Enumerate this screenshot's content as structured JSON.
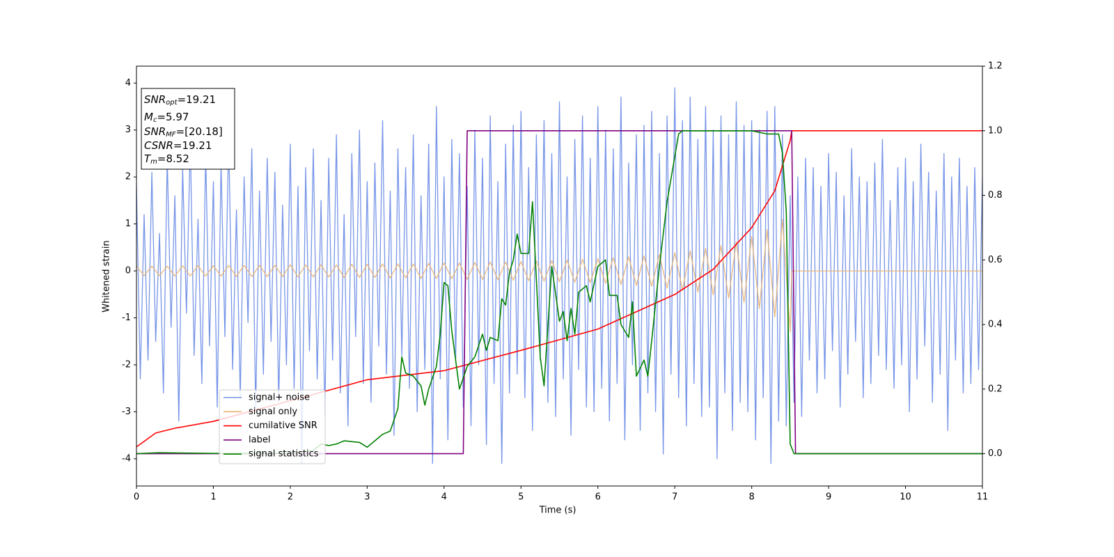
{
  "chart_data": {
    "type": "line",
    "xlabel": "Time (s)",
    "ylabel": "Whitened strain",
    "xlim": [
      0,
      11
    ],
    "ylim": [
      -4.58,
      4.36
    ],
    "y2lim": [
      -0.1,
      1.2
    ],
    "xticks": [
      0,
      1,
      2,
      3,
      4,
      5,
      6,
      7,
      8,
      9,
      10,
      11
    ],
    "yticks": [
      -4,
      -3,
      -2,
      -1,
      0,
      1,
      2,
      3,
      4
    ],
    "y2ticks": [
      {
        "value": 0,
        "label": "0.0"
      },
      {
        "value": 0.2,
        "label": "0.2"
      },
      {
        "value": 0.4,
        "label": "0.4"
      },
      {
        "value": 0.6,
        "label": "0.6"
      },
      {
        "value": 0.8,
        "label": "0.8"
      },
      {
        "value": 1.0,
        "label": "1.0"
      },
      {
        "value": 1.2,
        "label": "1.2"
      }
    ],
    "legend": "lower left",
    "annotations": [
      {
        "base": "SNR",
        "sub": "opt",
        "rest": "=19.21"
      },
      {
        "base": "M",
        "sub": "c",
        "rest": "=5.97"
      },
      {
        "base": "SNR",
        "sub": "MF",
        "rest": "=[20.18]"
      },
      {
        "base": "CSNR",
        "rest": "=19.21"
      },
      {
        "base": "T",
        "sub": "m",
        "rest": "=8.52"
      }
    ],
    "series": [
      {
        "name": "signal+ noise",
        "color": "#7795e8",
        "x": [
          0,
          0.05,
          0.1,
          0.15,
          0.2,
          0.25,
          0.3,
          0.35,
          0.4,
          0.45,
          0.5,
          0.55,
          0.6,
          0.65,
          0.7,
          0.75,
          0.8,
          0.85,
          0.9,
          0.95,
          1,
          1.05,
          1.1,
          1.15,
          1.2,
          1.25,
          1.3,
          1.35,
          1.4,
          1.45,
          1.5,
          1.55,
          1.6,
          1.65,
          1.7,
          1.75,
          1.8,
          1.85,
          1.9,
          1.95,
          2,
          2.05,
          2.1,
          2.15,
          2.2,
          2.25,
          2.3,
          2.35,
          2.4,
          2.45,
          2.5,
          2.55,
          2.6,
          2.65,
          2.7,
          2.75,
          2.8,
          2.85,
          2.9,
          2.95,
          3,
          3.05,
          3.1,
          3.15,
          3.2,
          3.25,
          3.3,
          3.35,
          3.4,
          3.45,
          3.5,
          3.55,
          3.6,
          3.65,
          3.7,
          3.75,
          3.8,
          3.85,
          3.9,
          3.95,
          4,
          4.05,
          4.1,
          4.15,
          4.2,
          4.25,
          4.3,
          4.35,
          4.4,
          4.45,
          4.5,
          4.55,
          4.6,
          4.65,
          4.7,
          4.75,
          4.8,
          4.85,
          4.9,
          4.95,
          5,
          5.05,
          5.1,
          5.15,
          5.2,
          5.25,
          5.3,
          5.35,
          5.4,
          5.45,
          5.5,
          5.55,
          5.6,
          5.65,
          5.7,
          5.75,
          5.8,
          5.85,
          5.9,
          5.95,
          6,
          6.05,
          6.1,
          6.15,
          6.2,
          6.25,
          6.3,
          6.35,
          6.4,
          6.45,
          6.5,
          6.55,
          6.6,
          6.65,
          6.7,
          6.75,
          6.8,
          6.85,
          6.9,
          6.95,
          7,
          7.05,
          7.1,
          7.15,
          7.2,
          7.25,
          7.3,
          7.35,
          7.4,
          7.45,
          7.5,
          7.55,
          7.6,
          7.65,
          7.7,
          7.75,
          7.8,
          7.85,
          7.9,
          7.95,
          8,
          8.05,
          8.1,
          8.15,
          8.2,
          8.25,
          8.3,
          8.35,
          8.4,
          8.45,
          8.5,
          8.55,
          8.6,
          8.65,
          8.7,
          8.75,
          8.8,
          8.85,
          8.9,
          8.95,
          9,
          9.05,
          9.1,
          9.15,
          9.2,
          9.25,
          9.3,
          9.35,
          9.4,
          9.45,
          9.5,
          9.55,
          9.6,
          9.65,
          9.7,
          9.75,
          9.8,
          9.85,
          9.9,
          9.95,
          10,
          10.05,
          10.1,
          10.15,
          10.2,
          10.25,
          10.3,
          10.35,
          10.4,
          10.45,
          10.5,
          10.55,
          10.6,
          10.65,
          10.7,
          10.75,
          10.8,
          10.85,
          10.9,
          10.95,
          11
        ],
        "values": [
          1.8,
          -2.3,
          1.2,
          -1.9,
          2.1,
          -1.5,
          0.8,
          -2.6,
          2.4,
          -1.2,
          1.6,
          -3.2,
          2.2,
          -0.9,
          2.8,
          -1.8,
          1.1,
          -2.4,
          2.5,
          -1.6,
          1.9,
          -2.9,
          2.3,
          -1.4,
          2.9,
          -2.1,
          1.3,
          -2.7,
          2.0,
          -1.1,
          2.6,
          -3.0,
          1.7,
          -2.2,
          2.4,
          -1.5,
          2.1,
          -2.8,
          1.4,
          -2.0,
          2.7,
          -2.5,
          1.8,
          -4.1,
          2.2,
          -1.7,
          2.6,
          -2.3,
          1.5,
          -3.1,
          2.4,
          -1.9,
          2.9,
          -2.6,
          1.2,
          -3.3,
          2.5,
          -1.4,
          3.0,
          -2.4,
          1.9,
          -2.8,
          2.3,
          -1.6,
          3.2,
          -2.2,
          1.7,
          -3.5,
          2.6,
          -1.8,
          2.2,
          -2.5,
          2.9,
          -3.0,
          1.6,
          -2.1,
          2.7,
          -4.1,
          3.5,
          -2.3,
          2.0,
          -3.6,
          2.8,
          -1.9,
          2.5,
          -2.9,
          1.8,
          -3.3,
          3.0,
          -2.0,
          2.4,
          -3.7,
          3.3,
          -2.4,
          1.9,
          -4.1,
          2.7,
          -2.6,
          3.1,
          -2.2,
          3.4,
          -2.7,
          2.2,
          -3.4,
          2.9,
          -1.9,
          3.2,
          -2.8,
          2.5,
          -3.1,
          3.6,
          -2.3,
          2.0,
          -3.5,
          2.8,
          -2.1,
          3.3,
          -2.9,
          2.4,
          -3.0,
          3.5,
          -2.5,
          3.0,
          -3.2,
          2.6,
          -2.4,
          3.7,
          -3.6,
          2.3,
          -2.0,
          2.9,
          -3.4,
          3.1,
          -2.6,
          3.4,
          -3.0,
          2.5,
          -3.9,
          3.3,
          -2.2,
          3.9,
          -2.7,
          3.2,
          -3.3,
          3.7,
          -2.4,
          2.8,
          -3.1,
          3.5,
          -2.9,
          3.0,
          -4.0,
          3.3,
          -2.6,
          2.9,
          -3.4,
          3.6,
          -2.8,
          3.1,
          -3.0,
          3.2,
          -3.6,
          3.0,
          -2.7,
          3.4,
          -4.1,
          3.5,
          -3.2,
          2.9,
          -3.3,
          1.6,
          -2.8,
          2.0,
          -3.1,
          2.4,
          -1.9,
          2.2,
          -2.6,
          1.8,
          -2.3,
          2.5,
          -1.7,
          2.1,
          -2.9,
          1.6,
          -2.2,
          2.6,
          -1.5,
          2.0,
          -2.7,
          1.9,
          -2.4,
          2.3,
          -1.8,
          2.8,
          -2.1,
          1.5,
          -2.5,
          2.2,
          -2.0,
          2.4,
          -3.0,
          1.9,
          -2.3,
          2.7,
          -1.6,
          2.1,
          -2.8,
          1.7,
          -2.2,
          2.5,
          -3.4,
          2.0,
          -1.9,
          2.4,
          -2.6,
          1.8,
          -2.4,
          2.2,
          -2.1,
          2.0
        ]
      },
      {
        "name": "signal only",
        "color": "#e8b070",
        "x": [
          0,
          0.1,
          0.2,
          0.3,
          0.4,
          0.5,
          0.6,
          0.7,
          0.8,
          0.9,
          1,
          1.1,
          1.2,
          1.3,
          1.4,
          1.5,
          1.6,
          1.7,
          1.8,
          1.9,
          2,
          2.1,
          2.2,
          2.3,
          2.4,
          2.5,
          2.6,
          2.7,
          2.8,
          2.9,
          3,
          3.1,
          3.2,
          3.3,
          3.4,
          3.5,
          3.6,
          3.7,
          3.8,
          3.9,
          4,
          4.1,
          4.2,
          4.3,
          4.4,
          4.5,
          4.6,
          4.7,
          4.8,
          4.9,
          5,
          5.1,
          5.2,
          5.3,
          5.4,
          5.5,
          5.6,
          5.7,
          5.8,
          5.9,
          6,
          6.1,
          6.2,
          6.3,
          6.4,
          6.5,
          6.6,
          6.7,
          6.8,
          6.9,
          7,
          7.1,
          7.2,
          7.3,
          7.4,
          7.5,
          7.6,
          7.7,
          7.8,
          7.9,
          8,
          8.1,
          8.2,
          8.3,
          8.4,
          8.5,
          8.52,
          11
        ],
        "values": [
          0.1,
          -0.1,
          0.1,
          -0.1,
          0.1,
          -0.11,
          0.11,
          -0.11,
          0.11,
          -0.11,
          0.11,
          -0.11,
          0.12,
          -0.12,
          0.12,
          -0.12,
          0.12,
          -0.12,
          0.12,
          -0.12,
          0.13,
          -0.13,
          0.13,
          -0.13,
          0.13,
          -0.13,
          0.13,
          -0.14,
          0.14,
          -0.14,
          0.14,
          -0.14,
          0.15,
          -0.15,
          0.15,
          -0.15,
          0.15,
          -0.16,
          0.16,
          -0.16,
          0.17,
          -0.17,
          0.17,
          -0.18,
          0.18,
          -0.18,
          0.19,
          -0.19,
          0.19,
          -0.2,
          0.2,
          -0.21,
          0.21,
          -0.22,
          0.22,
          -0.23,
          0.23,
          -0.24,
          0.25,
          -0.25,
          0.26,
          -0.27,
          0.28,
          -0.29,
          0.3,
          -0.31,
          0.32,
          -0.33,
          0.35,
          -0.37,
          0.39,
          -0.41,
          0.43,
          -0.45,
          0.48,
          -0.51,
          0.54,
          -0.58,
          0.62,
          -0.67,
          0.73,
          -0.8,
          0.88,
          -0.98,
          1.1,
          -1.3,
          0,
          0
        ]
      },
      {
        "name": "cumilative SNR",
        "color": "#ff0000",
        "axis": "y2",
        "x": [
          0,
          0.25,
          0.5,
          1,
          2,
          3,
          4,
          5,
          6,
          7,
          7.5,
          8,
          8.3,
          8.5,
          8.52,
          11
        ],
        "values": [
          0.021,
          0.064,
          0.079,
          0.1,
          0.164,
          0.229,
          0.257,
          0.32,
          0.386,
          0.493,
          0.571,
          0.7,
          0.814,
          0.97,
          1.0,
          1.0
        ]
      },
      {
        "name": "label",
        "color": "#800080",
        "axis": "y2",
        "x": [
          0,
          4.25,
          4.3,
          8.52,
          8.57,
          11
        ],
        "values": [
          0,
          0,
          1,
          1,
          0,
          0
        ]
      },
      {
        "name": "signal statistics",
        "color": "#008000",
        "axis": "y2",
        "x": [
          0,
          0.3,
          1,
          2,
          2.3,
          2.4,
          2.5,
          2.6,
          2.7,
          2.9,
          3.0,
          3.1,
          3.2,
          3.3,
          3.4,
          3.45,
          3.5,
          3.6,
          3.7,
          3.75,
          3.8,
          3.9,
          3.95,
          4.0,
          4.05,
          4.1,
          4.2,
          4.3,
          4.4,
          4.5,
          4.55,
          4.6,
          4.7,
          4.75,
          4.8,
          4.85,
          4.9,
          4.95,
          5.0,
          5.1,
          5.15,
          5.25,
          5.3,
          5.4,
          5.5,
          5.55,
          5.6,
          5.65,
          5.7,
          5.75,
          5.85,
          5.9,
          6.0,
          6.1,
          6.15,
          6.25,
          6.3,
          6.4,
          6.45,
          6.5,
          6.6,
          6.65,
          6.7,
          6.8,
          6.9,
          7.0,
          7.05,
          7.1,
          7.5,
          8.0,
          8.2,
          8.35,
          8.4,
          8.45,
          8.5,
          8.55,
          11
        ],
        "values": [
          0,
          0.003,
          0.001,
          0.001,
          0.01,
          0.03,
          0.025,
          0.03,
          0.04,
          0.035,
          0.02,
          0.04,
          0.06,
          0.07,
          0.14,
          0.3,
          0.25,
          0.24,
          0.21,
          0.15,
          0.2,
          0.27,
          0.37,
          0.53,
          0.52,
          0.38,
          0.2,
          0.27,
          0.3,
          0.37,
          0.32,
          0.36,
          0.35,
          0.48,
          0.46,
          0.56,
          0.6,
          0.68,
          0.62,
          0.62,
          0.78,
          0.3,
          0.21,
          0.58,
          0.41,
          0.44,
          0.35,
          0.45,
          0.37,
          0.5,
          0.52,
          0.47,
          0.58,
          0.6,
          0.49,
          0.49,
          0.4,
          0.36,
          0.47,
          0.24,
          0.29,
          0.24,
          0.35,
          0.58,
          0.78,
          0.92,
          0.99,
          1.0,
          1.0,
          1.0,
          0.99,
          0.99,
          0.93,
          0.75,
          0.03,
          0,
          0
        ]
      }
    ]
  }
}
